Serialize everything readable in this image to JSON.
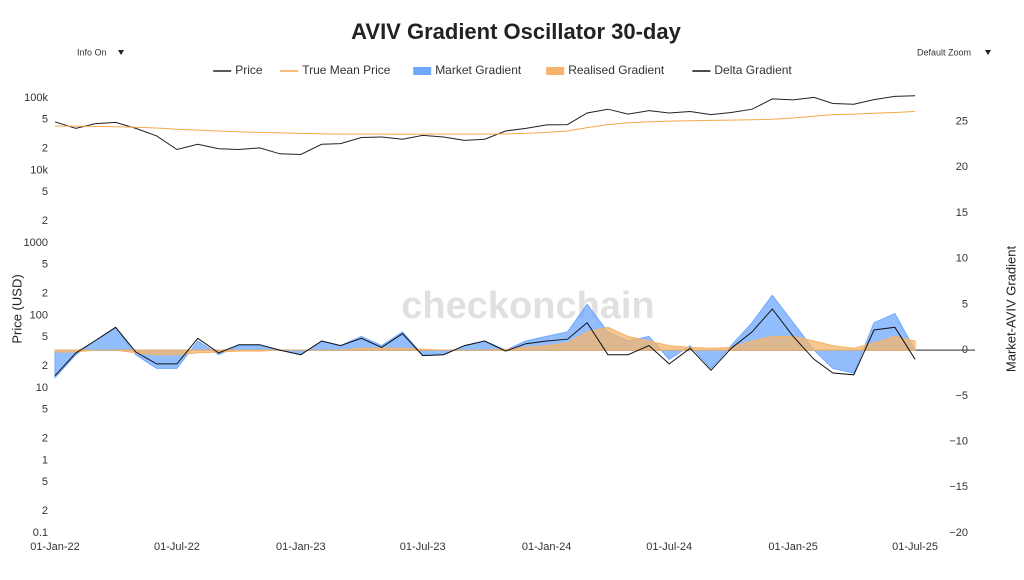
{
  "chart_data": {
    "type": "line",
    "title": "AVIV Gradient Oscillator 30-day",
    "controls": {
      "info": "Info On",
      "zoom": "Default Zoom"
    },
    "watermark": "checkonchain",
    "ylabel": "Price (USD)",
    "y2label": "Market-AVIV Gradient",
    "ylog": true,
    "grid": false,
    "legend": "top",
    "x": [
      "2022-01-01",
      "2022-02-01",
      "2022-03-01",
      "2022-04-01",
      "2022-05-01",
      "2022-06-01",
      "2022-07-01",
      "2022-08-01",
      "2022-09-01",
      "2022-10-01",
      "2022-11-01",
      "2022-12-01",
      "2023-01-01",
      "2023-02-01",
      "2023-03-01",
      "2023-04-01",
      "2023-05-01",
      "2023-06-01",
      "2023-07-01",
      "2023-08-01",
      "2023-09-01",
      "2023-10-01",
      "2023-11-01",
      "2023-12-01",
      "2024-01-01",
      "2024-02-01",
      "2024-03-01",
      "2024-04-01",
      "2024-05-01",
      "2024-06-01",
      "2024-07-01",
      "2024-08-01",
      "2024-09-01",
      "2024-10-01",
      "2024-11-01",
      "2024-12-01",
      "2025-01-01",
      "2025-02-01",
      "2025-03-01",
      "2025-04-01",
      "2025-05-01",
      "2025-06-01",
      "2025-07-01"
    ],
    "xlim": [
      "2022-01-01",
      "2025-09-28"
    ],
    "xticks": [
      {
        "value": "2022-01-01",
        "label": "01-Jan-22"
      },
      {
        "value": "2022-07-01",
        "label": "01-Jul-22"
      },
      {
        "value": "2023-01-01",
        "label": "01-Jan-23"
      },
      {
        "value": "2023-07-01",
        "label": "01-Jul-23"
      },
      {
        "value": "2024-01-01",
        "label": "01-Jan-24"
      },
      {
        "value": "2024-07-01",
        "label": "01-Jul-24"
      },
      {
        "value": "2025-01-01",
        "label": "01-Jan-25"
      },
      {
        "value": "2025-07-01",
        "label": "01-Jul-25"
      }
    ],
    "ylim": [
      0.1,
      151000
    ],
    "yticks": [
      {
        "value": 100000,
        "label": "100k"
      },
      {
        "value": 50000,
        "label": "5"
      },
      {
        "value": 20000,
        "label": "2"
      },
      {
        "value": 10000,
        "label": "10k"
      },
      {
        "value": 5000,
        "label": "5"
      },
      {
        "value": 2000,
        "label": "2"
      },
      1000,
      {
        "value": 500,
        "label": "5"
      },
      {
        "value": 200,
        "label": "2"
      },
      100,
      {
        "value": 50,
        "label": "5"
      },
      {
        "value": 20,
        "label": "2"
      },
      10,
      {
        "value": 5,
        "label": "5"
      },
      {
        "value": 2,
        "label": "2"
      },
      1,
      {
        "value": 0.5,
        "label": "5"
      },
      {
        "value": 0.2,
        "label": "2"
      },
      0.1
    ],
    "y2lim": [
      -20,
      29
    ],
    "y2ticks": [
      25,
      20,
      15,
      10,
      5,
      0,
      {
        "value": -5,
        "label": "−5"
      },
      {
        "value": -10,
        "label": "−10"
      },
      {
        "value": -15,
        "label": "−15"
      },
      {
        "value": -20,
        "label": "−20"
      }
    ],
    "series": [
      {
        "name": "Price",
        "color": "#222222",
        "style": "line",
        "values": [
          47000,
          38000,
          44000,
          46000,
          38000,
          30000,
          19500,
          23000,
          20000,
          19500,
          20500,
          17000,
          16600,
          23000,
          23500,
          28500,
          29000,
          27000,
          30500,
          29000,
          26000,
          27000,
          35000,
          38000,
          42500,
          43000,
          62000,
          70000,
          60000,
          67000,
          62000,
          65000,
          59000,
          63000,
          70000,
          97000,
          94000,
          102000,
          84000,
          82000,
          95000,
          105000,
          107000
        ]
      },
      {
        "name": "True Mean Price",
        "color": "#f5a94a",
        "style": "line",
        "values": [
          41000,
          41000,
          40500,
          40000,
          39500,
          38500,
          37000,
          36000,
          35000,
          34000,
          33500,
          33000,
          32500,
          32000,
          31800,
          31800,
          31800,
          31700,
          31800,
          31800,
          31800,
          31800,
          32000,
          32500,
          33500,
          35000,
          39000,
          43000,
          45500,
          47000,
          48000,
          48500,
          49000,
          49500,
          50000,
          51000,
          53000,
          56000,
          59000,
          60000,
          61500,
          63000,
          65000
        ]
      },
      {
        "name": "Market Gradient",
        "color": "#6ea8fe",
        "style": "area",
        "axis": "y2",
        "values": [
          -3,
          -0.5,
          1,
          2.5,
          -0.5,
          -2,
          -2,
          1,
          -0.5,
          0.5,
          0.5,
          0,
          -0.5,
          1,
          0.5,
          1.5,
          0.5,
          2,
          -0.5,
          -0.5,
          0.5,
          1,
          0,
          1,
          1.5,
          2,
          5,
          2,
          1,
          1.5,
          -1,
          0.5,
          -2,
          0.5,
          3,
          6,
          3,
          0,
          -2,
          -2.5,
          3,
          4,
          0
        ]
      },
      {
        "name": "Realised Gradient",
        "color": "#f5b46a",
        "style": "area",
        "axis": "y2",
        "values": [
          -0.2,
          -0.2,
          0,
          0,
          -0.3,
          -0.5,
          -0.5,
          -0.3,
          -0.2,
          -0.1,
          -0.1,
          0,
          0,
          0,
          0,
          0.2,
          0.2,
          0.2,
          0.1,
          0,
          0,
          0,
          0.1,
          0.3,
          0.5,
          0.8,
          2,
          2.5,
          1.5,
          1,
          0.5,
          0.3,
          0.2,
          0.3,
          1,
          1.5,
          1.5,
          1,
          0.5,
          0.2,
          0.8,
          1.5,
          1
        ]
      },
      {
        "name": "Delta Gradient",
        "color": "#111111",
        "style": "line",
        "axis": "y2",
        "values": [
          -2.8,
          -0.3,
          1,
          2.5,
          -0.2,
          -1.5,
          -1.5,
          1.3,
          -0.3,
          0.6,
          0.6,
          0,
          -0.5,
          1,
          0.5,
          1.3,
          0.3,
          1.8,
          -0.6,
          -0.5,
          0.5,
          1,
          -0.1,
          0.7,
          1,
          1.2,
          3,
          -0.5,
          -0.5,
          0.5,
          -1.5,
          0.2,
          -2.2,
          0.2,
          2,
          4.5,
          1.5,
          -1,
          -2.5,
          -2.7,
          2.2,
          2.5,
          -1
        ]
      }
    ]
  }
}
